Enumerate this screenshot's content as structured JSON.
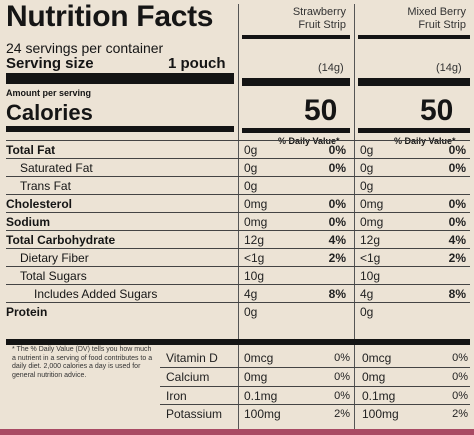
{
  "title": "Nutrition Facts",
  "servings_per_container": "24 servings per container",
  "serving_size_label": "Serving size",
  "serving_size_value": "1 pouch",
  "amount_per_serving": "Amount per serving",
  "calories_label": "Calories",
  "columns": [
    {
      "name_line1": "Strawberry",
      "name_line2": "Fruit Strip",
      "grams": "(14g)",
      "calories": "50",
      "dv_header": "% Daily Value*"
    },
    {
      "name_line1": "Mixed Berry",
      "name_line2": "Fruit Strip",
      "grams": "(14g)",
      "calories": "50",
      "dv_header": "% Daily Value*"
    }
  ],
  "nutrients": [
    {
      "name": "Total Fat",
      "bold": true,
      "indent": 0,
      "c1_amt": "0g",
      "c1_pct": "0%",
      "c2_amt": "0g",
      "c2_pct": "0%"
    },
    {
      "name": "Saturated Fat",
      "bold": false,
      "indent": 1,
      "c1_amt": "0g",
      "c1_pct": "0%",
      "c2_amt": "0g",
      "c2_pct": "0%"
    },
    {
      "name": "Trans Fat",
      "bold": false,
      "indent": 1,
      "c1_amt": "0g",
      "c1_pct": "",
      "c2_amt": "0g",
      "c2_pct": ""
    },
    {
      "name": "Cholesterol",
      "bold": true,
      "indent": 0,
      "c1_amt": "0mg",
      "c1_pct": "0%",
      "c2_amt": "0mg",
      "c2_pct": "0%"
    },
    {
      "name": "Sodium",
      "bold": true,
      "indent": 0,
      "c1_amt": "0mg",
      "c1_pct": "0%",
      "c2_amt": "0mg",
      "c2_pct": "0%"
    },
    {
      "name": "Total Carbohydrate",
      "bold": true,
      "indent": 0,
      "c1_amt": "12g",
      "c1_pct": "4%",
      "c2_amt": "12g",
      "c2_pct": "4%"
    },
    {
      "name": "Dietary Fiber",
      "bold": false,
      "indent": 1,
      "c1_amt": "<1g",
      "c1_pct": "2%",
      "c2_amt": "<1g",
      "c2_pct": "2%"
    },
    {
      "name": "Total Sugars",
      "bold": false,
      "indent": 1,
      "c1_amt": "10g",
      "c1_pct": "",
      "c2_amt": "10g",
      "c2_pct": ""
    },
    {
      "name": "Includes Added Sugars",
      "bold": false,
      "indent": 2,
      "c1_amt": "4g",
      "c1_pct": "8%",
      "c2_amt": "4g",
      "c2_pct": "8%"
    },
    {
      "name": "Protein",
      "bold": true,
      "indent": 0,
      "c1_amt": "0g",
      "c1_pct": "",
      "c2_amt": "0g",
      "c2_pct": ""
    }
  ],
  "footnote": "* The % Daily Value (DV) tells you how much a nutrient in a serving of food contributes to a daily diet. 2,000 calories a day is used for general nutrition advice.",
  "vitamins": [
    {
      "name": "Vitamin D",
      "c1_amt": "0mcg",
      "c1_pct": "0%",
      "c2_amt": "0mcg",
      "c2_pct": "0%"
    },
    {
      "name": "Calcium",
      "c1_amt": "0mg",
      "c1_pct": "0%",
      "c2_amt": "0mg",
      "c2_pct": "0%"
    },
    {
      "name": "Iron",
      "c1_amt": "0.1mg",
      "c1_pct": "0%",
      "c2_amt": "0.1mg",
      "c2_pct": "0%"
    },
    {
      "name": "Potassium",
      "c1_amt": "100mg",
      "c1_pct": "2%",
      "c2_amt": "100mg",
      "c2_pct": "2%"
    }
  ],
  "colors": {
    "label_bg": "#ece3d5",
    "ink": "#141414",
    "package": "#a94a63"
  }
}
